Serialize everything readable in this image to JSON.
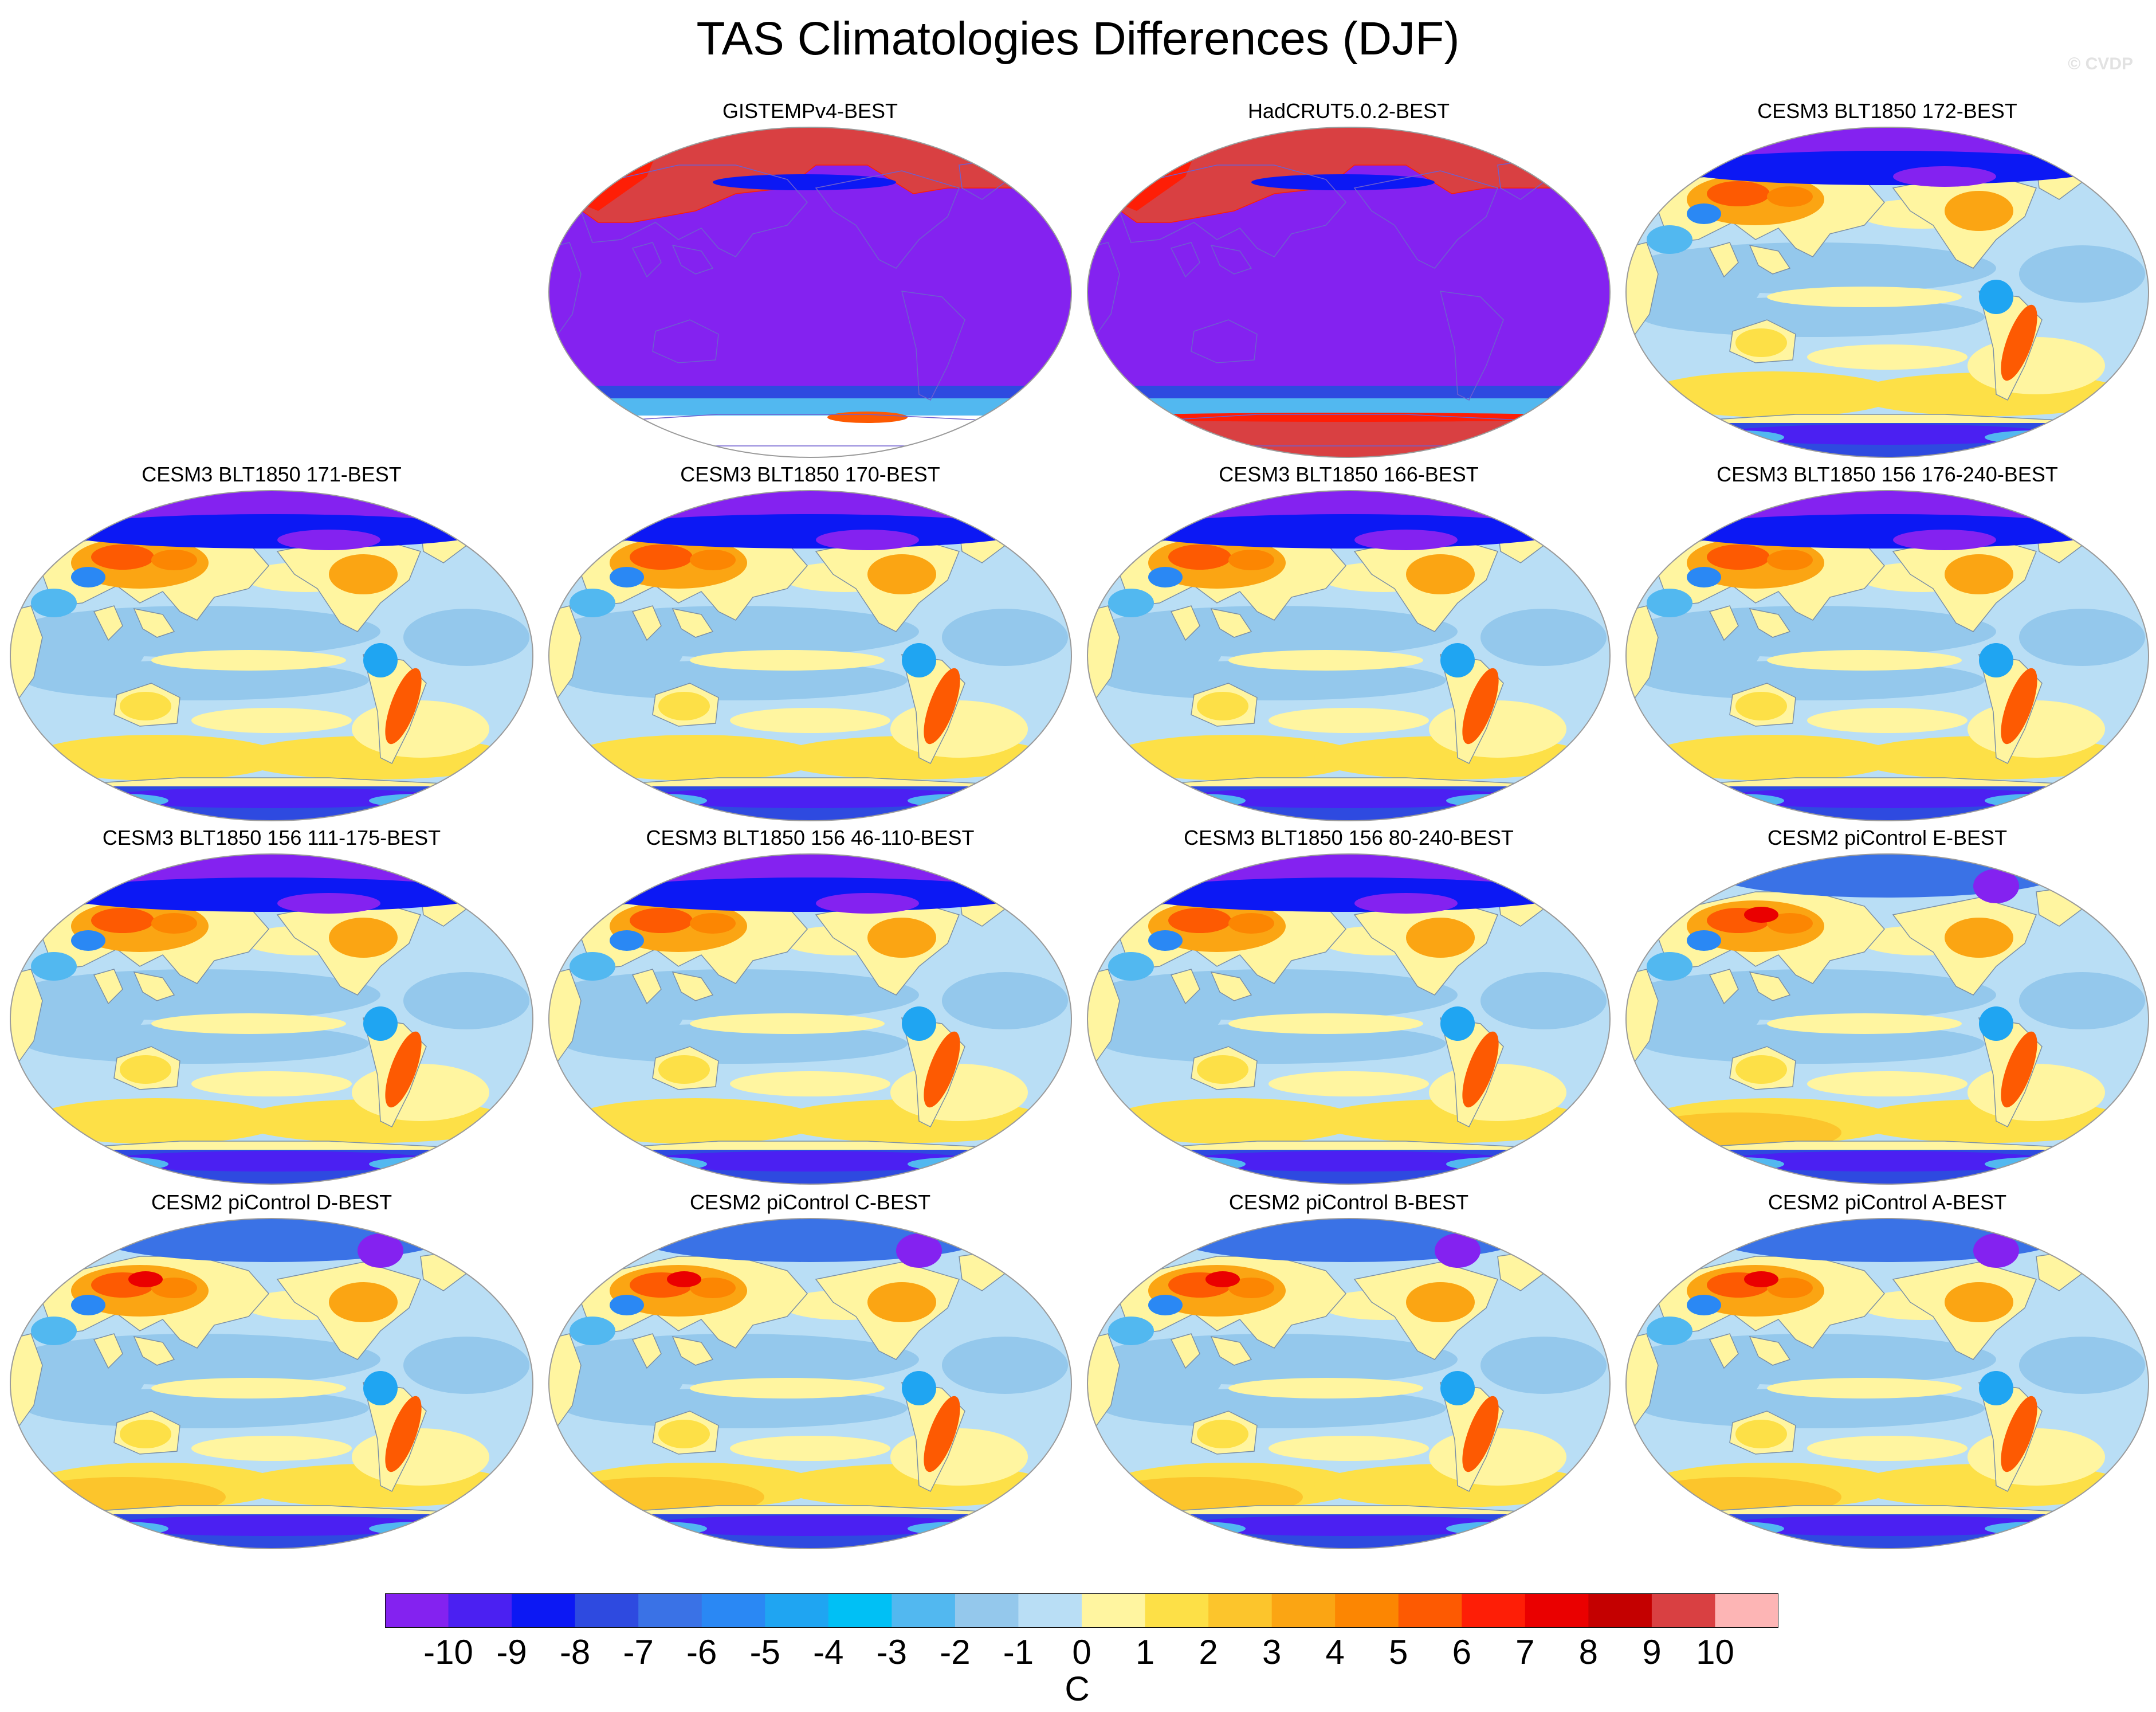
{
  "title": "TAS Climatologies Differences (DJF)",
  "watermark": "© CVDP",
  "panels": [
    {
      "label": "GISTEMPv4-BEST",
      "style": "obs_gis"
    },
    {
      "label": "HadCRUT5.0.2-BEST",
      "style": "obs_had"
    },
    {
      "label": "CESM3 BLT1850 172-BEST",
      "style": "model"
    },
    {
      "label": "CESM3 BLT1850 171-BEST",
      "style": "model"
    },
    {
      "label": "CESM3 BLT1850 170-BEST",
      "style": "model"
    },
    {
      "label": "CESM3 BLT1850 166-BEST",
      "style": "model"
    },
    {
      "label": "CESM3 BLT1850 156 176-240-BEST",
      "style": "model"
    },
    {
      "label": "CESM3 BLT1850 156 111-175-BEST",
      "style": "model"
    },
    {
      "label": "CESM3 BLT1850 156 46-110-BEST",
      "style": "model"
    },
    {
      "label": "CESM3 BLT1850 156 80-240-BEST",
      "style": "model"
    },
    {
      "label": "CESM2 piControl E-BEST",
      "style": "model2"
    },
    {
      "label": "CESM2 piControl D-BEST",
      "style": "model2"
    },
    {
      "label": "CESM2 piControl C-BEST",
      "style": "model2"
    },
    {
      "label": "CESM2 piControl B-BEST",
      "style": "model2"
    },
    {
      "label": "CESM2 piControl A-BEST",
      "style": "model2"
    }
  ],
  "colorbar": {
    "labels": [
      "-10",
      "-9",
      "-8",
      "-7",
      "-6",
      "-5",
      "-4",
      "-3",
      "-2",
      "-1",
      "0",
      "1",
      "2",
      "3",
      "4",
      "5",
      "6",
      "7",
      "8",
      "9",
      "10"
    ],
    "colors": [
      "#8422f0",
      "#4b20f2",
      "#0c18f4",
      "#2e4ae0",
      "#3a72e6",
      "#2a88f4",
      "#1fa5f2",
      "#00c0f5",
      "#52b8f0",
      "#94c8ec",
      "#b9def5",
      "#fff5a0",
      "#fde047",
      "#fcc52c",
      "#fba513",
      "#fc8602",
      "#fd5a02",
      "#fe1e06",
      "#ea0000",
      "#c40000",
      "#d94042",
      "#fdb5b5"
    ],
    "units": "C"
  }
}
